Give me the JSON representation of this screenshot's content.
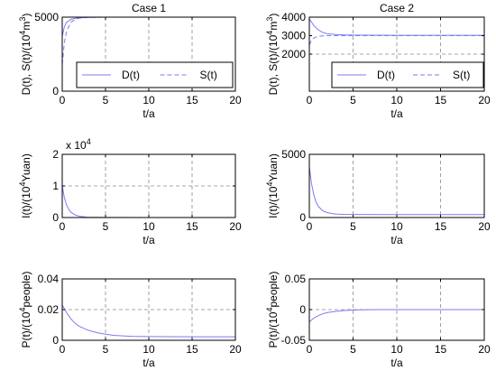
{
  "chart_data": [
    {
      "type": "line",
      "title": "Case 1",
      "xlabel": "t/a",
      "ylabel_main": "D(t), S(t)/(10",
      "ylabel_sup": "4",
      "ylabel_unit": "m",
      "ylabel_unit_sup": "3",
      "ylabel_close": ")",
      "xlim": [
        0,
        20
      ],
      "ylim": [
        0,
        5000
      ],
      "xticks": [
        "0",
        "5",
        "10",
        "15",
        "20"
      ],
      "yticks": [
        "0",
        "5000"
      ],
      "ytick_values": [
        0,
        5000
      ],
      "legend": [
        "D(t)",
        "S(t)"
      ],
      "legend_position": "center-right",
      "grid_x": [
        5,
        10,
        15
      ],
      "series": [
        {
          "name": "D(t)",
          "style": "solid",
          "x": [
            0,
            0.25,
            0.5,
            1,
            1.5,
            2,
            3,
            4,
            5,
            10,
            15,
            20
          ],
          "y": [
            3700,
            4350,
            4650,
            4850,
            4920,
            4960,
            4985,
            4995,
            5000,
            5000,
            5000,
            5000
          ]
        },
        {
          "name": "S(t)",
          "style": "dashed",
          "x": [
            0,
            0.25,
            0.5,
            1,
            1.5,
            2,
            3,
            4,
            5,
            10,
            15,
            20
          ],
          "y": [
            1800,
            3300,
            4050,
            4650,
            4850,
            4930,
            4980,
            4995,
            5000,
            5000,
            5000,
            5000
          ]
        }
      ]
    },
    {
      "type": "line",
      "title": "Case 2",
      "xlabel": "t/a",
      "ylabel_main": "D(t), S(t)/(10",
      "ylabel_sup": "4",
      "ylabel_unit": "m",
      "ylabel_unit_sup": "3",
      "ylabel_close": ")",
      "xlim": [
        0,
        20
      ],
      "ylim": [
        0,
        4000
      ],
      "xticks": [
        "0",
        "5",
        "10",
        "15",
        "20"
      ],
      "yticks": [
        "2000",
        "3000",
        "4000"
      ],
      "ytick_values": [
        2000,
        3000,
        4000
      ],
      "legend": [
        "D(t)",
        "S(t)"
      ],
      "legend_position": "center-right",
      "grid_x": [
        5,
        10,
        15
      ],
      "hline": 2000,
      "series": [
        {
          "name": "D(t)",
          "style": "solid",
          "x": [
            0,
            0.5,
            1,
            1.5,
            2,
            3,
            4,
            5,
            10,
            15,
            20
          ],
          "y": [
            3900,
            3550,
            3320,
            3180,
            3110,
            3060,
            3040,
            3030,
            3020,
            3020,
            3020
          ]
        },
        {
          "name": "S(t)",
          "style": "dashed",
          "x": [
            0,
            0.25,
            0.5,
            1,
            1.5,
            2,
            3,
            4,
            5,
            10,
            15,
            20
          ],
          "y": [
            2500,
            2750,
            2870,
            2960,
            2990,
            3000,
            3000,
            3000,
            3000,
            3000,
            3000,
            3000
          ]
        }
      ]
    },
    {
      "type": "line",
      "title": "",
      "xlabel": "t/a",
      "ylabel_main": "I(t)/(10",
      "ylabel_sup": "4",
      "ylabel_unit": "Yuan",
      "ylabel_unit_sup": "",
      "ylabel_close": ")",
      "scale_label": "x 10",
      "scale_exp": "4",
      "xlim": [
        0,
        20
      ],
      "ylim": [
        0,
        2
      ],
      "xticks": [
        "0",
        "5",
        "10",
        "15",
        "20"
      ],
      "yticks": [
        "0",
        "1",
        "2"
      ],
      "ytick_values": [
        0,
        1,
        2
      ],
      "legend": [],
      "grid_x": [
        5,
        10,
        15
      ],
      "hline": 1,
      "series": [
        {
          "name": "",
          "style": "solid",
          "x": [
            0,
            0.25,
            0.5,
            0.75,
            1,
            1.5,
            2,
            2.5,
            3,
            4,
            5,
            10,
            15,
            20
          ],
          "y": [
            1.0,
            0.62,
            0.4,
            0.26,
            0.17,
            0.08,
            0.04,
            0.02,
            0.01,
            0.005,
            0.002,
            0,
            0,
            0
          ]
        }
      ]
    },
    {
      "type": "line",
      "title": "",
      "xlabel": "t/a",
      "ylabel_main": "I(t)/(10",
      "ylabel_sup": "4",
      "ylabel_unit": "Yuan",
      "ylabel_unit_sup": "",
      "ylabel_close": ")",
      "xlim": [
        0,
        20
      ],
      "ylim": [
        0,
        5000
      ],
      "xticks": [
        "0",
        "5",
        "10",
        "15",
        "20"
      ],
      "yticks": [
        "0",
        "5000"
      ],
      "ytick_values": [
        0,
        5000
      ],
      "legend": [],
      "grid_x": [
        5,
        10,
        15
      ],
      "series": [
        {
          "name": "",
          "style": "solid",
          "x": [
            0,
            0.25,
            0.5,
            0.75,
            1,
            1.5,
            2,
            2.5,
            3,
            4,
            5,
            10,
            15,
            20
          ],
          "y": [
            4000,
            2700,
            1800,
            1250,
            900,
            550,
            400,
            320,
            280,
            250,
            240,
            230,
            230,
            230
          ]
        }
      ]
    },
    {
      "type": "line",
      "title": "",
      "xlabel": "t/a",
      "ylabel_main": "P(t)/(10",
      "ylabel_sup": "4",
      "ylabel_unit": "people",
      "ylabel_unit_sup": "",
      "ylabel_close": ")",
      "xlim": [
        0,
        20
      ],
      "ylim": [
        0,
        0.04
      ],
      "xticks": [
        "0",
        "5",
        "10",
        "15",
        "20"
      ],
      "yticks": [
        "0",
        "0.02",
        "0.04"
      ],
      "ytick_values": [
        0,
        0.02,
        0.04
      ],
      "legend": [],
      "grid_x": [
        5,
        10,
        15
      ],
      "hline": 0.02,
      "series": [
        {
          "name": "",
          "style": "solid",
          "x": [
            0,
            0.5,
            1,
            1.5,
            2,
            3,
            4,
            5,
            6,
            8,
            10,
            15,
            20
          ],
          "y": [
            0.023,
            0.018,
            0.014,
            0.011,
            0.009,
            0.0065,
            0.005,
            0.004,
            0.0032,
            0.0026,
            0.0024,
            0.0023,
            0.0023
          ]
        }
      ]
    },
    {
      "type": "line",
      "title": "",
      "xlabel": "t/a",
      "ylabel_main": "P(t)/(10",
      "ylabel_sup": "4",
      "ylabel_unit": "people",
      "ylabel_unit_sup": "",
      "ylabel_close": ")",
      "xlim": [
        0,
        20
      ],
      "ylim": [
        -0.05,
        0.05
      ],
      "xticks": [
        "0",
        "5",
        "10",
        "15",
        "20"
      ],
      "yticks": [
        "-0.05",
        "0",
        "0.05"
      ],
      "ytick_values": [
        -0.05,
        0,
        0.05
      ],
      "legend": [],
      "grid_x": [
        5,
        10,
        15
      ],
      "hline": 0,
      "series": [
        {
          "name": "",
          "style": "solid",
          "x": [
            0,
            0.5,
            1,
            1.5,
            2,
            3,
            4,
            5,
            6,
            8,
            10,
            15,
            20
          ],
          "y": [
            -0.02,
            -0.014,
            -0.01,
            -0.007,
            -0.005,
            -0.003,
            -0.0015,
            -0.0008,
            -0.0003,
            0,
            0,
            0,
            0
          ]
        }
      ]
    }
  ]
}
